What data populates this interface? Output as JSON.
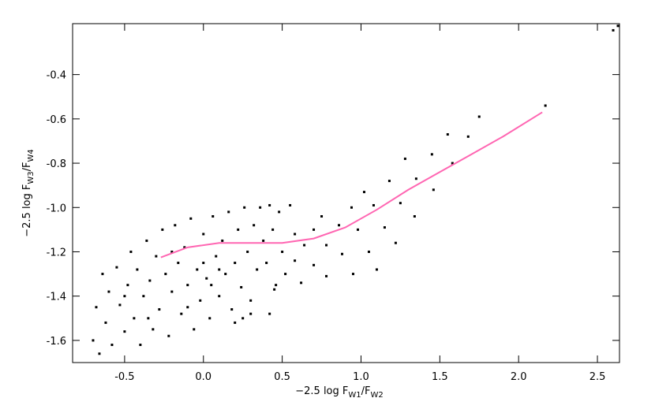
{
  "chart_data": {
    "type": "scatter",
    "xlabel_parts": [
      "−2.5 log F",
      "W1",
      "/F",
      "W2"
    ],
    "ylabel_parts": [
      "−2.5 log F",
      "W3",
      "/F",
      "W4"
    ],
    "xlim": [
      -0.83,
      2.64
    ],
    "ylim": [
      -1.7,
      -0.17
    ],
    "xticks": [
      -0.5,
      {
        "value": 0,
        "label": "0.0"
      },
      0.5,
      {
        "value": 1,
        "label": "1.0"
      },
      1.5,
      {
        "value": 2,
        "label": "2.0"
      },
      2.5
    ],
    "yticks": [
      -1.6,
      -1.4,
      -1.2,
      {
        "value": -1,
        "label": "-1.0"
      },
      -0.8,
      -0.6,
      -0.4
    ],
    "series": [
      {
        "style": "points",
        "color": "#000000",
        "x": [
          -0.7,
          -0.68,
          -0.66,
          -0.64,
          -0.62,
          -0.6,
          -0.58,
          -0.55,
          -0.53,
          -0.5,
          -0.48,
          -0.46,
          -0.44,
          -0.42,
          -0.4,
          -0.38,
          -0.36,
          -0.34,
          -0.32,
          -0.3,
          -0.28,
          -0.26,
          -0.24,
          -0.22,
          -0.2,
          -0.18,
          -0.16,
          -0.14,
          -0.12,
          -0.1,
          -0.08,
          -0.06,
          -0.04,
          -0.02,
          0.0,
          0.02,
          0.04,
          0.06,
          0.08,
          0.1,
          0.12,
          0.14,
          0.16,
          0.18,
          0.2,
          0.22,
          0.24,
          0.26,
          0.28,
          0.3,
          0.32,
          0.34,
          0.36,
          0.38,
          0.4,
          0.42,
          0.44,
          0.46,
          0.48,
          0.5,
          0.55,
          0.58,
          0.25,
          0.3,
          0.2,
          -0.5,
          -0.35,
          -0.2,
          0.0,
          0.1,
          -0.1,
          0.05,
          0.45,
          0.52,
          0.58,
          0.64,
          0.7,
          0.75,
          0.62,
          0.7,
          0.78,
          0.86,
          0.94,
          1.02,
          0.78,
          0.88,
          0.98,
          1.08,
          1.18,
          1.28,
          0.95,
          1.05,
          1.15,
          1.25,
          1.35,
          1.45,
          1.55,
          1.1,
          1.22,
          1.34,
          1.46,
          1.58,
          1.68,
          1.75,
          2.17,
          2.6,
          2.63,
          0.42
        ],
        "values": [
          -1.6,
          -1.45,
          -1.66,
          -1.3,
          -1.52,
          -1.38,
          -1.62,
          -1.27,
          -1.44,
          -1.56,
          -1.35,
          -1.2,
          -1.5,
          -1.28,
          -1.62,
          -1.4,
          -1.15,
          -1.33,
          -1.55,
          -1.22,
          -1.46,
          -1.1,
          -1.3,
          -1.58,
          -1.38,
          -1.08,
          -1.25,
          -1.48,
          -1.18,
          -1.35,
          -1.05,
          -1.55,
          -1.28,
          -1.42,
          -1.12,
          -1.32,
          -1.5,
          -1.04,
          -1.22,
          -1.4,
          -1.15,
          -1.3,
          -1.02,
          -1.46,
          -1.25,
          -1.1,
          -1.36,
          -1.0,
          -1.2,
          -1.42,
          -1.08,
          -1.28,
          -1.0,
          -1.15,
          -1.25,
          -0.99,
          -1.1,
          -1.35,
          -1.02,
          -1.2,
          -0.99,
          -1.12,
          -1.5,
          -1.48,
          -1.52,
          -1.4,
          -1.5,
          -1.2,
          -1.25,
          -1.28,
          -1.45,
          -1.35,
          -1.37,
          -1.3,
          -1.24,
          -1.17,
          -1.1,
          -1.04,
          -1.34,
          -1.26,
          -1.17,
          -1.08,
          -1.0,
          -0.93,
          -1.31,
          -1.21,
          -1.1,
          -0.99,
          -0.88,
          -0.78,
          -1.3,
          -1.2,
          -1.09,
          -0.98,
          -0.87,
          -0.76,
          -0.67,
          -1.28,
          -1.16,
          -1.04,
          -0.92,
          -0.8,
          -0.68,
          -0.59,
          -0.54,
          -0.2,
          -0.18,
          -1.48
        ]
      },
      {
        "style": "line",
        "color": "#ff66b2",
        "x": [
          -0.27,
          -0.1,
          0.1,
          0.3,
          0.5,
          0.7,
          0.9,
          1.1,
          1.3,
          1.5,
          1.7,
          1.9,
          2.15
        ],
        "values": [
          -1.225,
          -1.18,
          -1.16,
          -1.16,
          -1.16,
          -1.14,
          -1.09,
          -1.01,
          -0.92,
          -0.84,
          -0.76,
          -0.68,
          -0.57
        ]
      }
    ]
  }
}
